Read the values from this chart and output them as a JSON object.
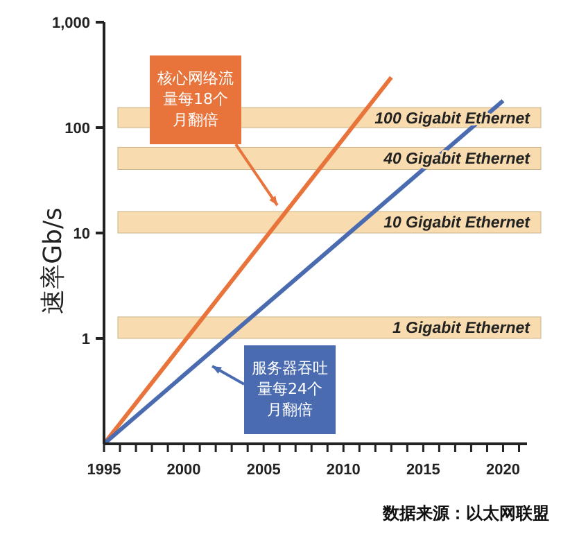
{
  "chart_data": {
    "type": "line",
    "ylabel": "速率Gb/s",
    "log": "y",
    "xlim": [
      1995,
      2021.5
    ],
    "ylim": [
      0.1,
      1000
    ],
    "xticks": [
      1995,
      {
        "value": 1996,
        "label": null
      },
      {
        "value": 1997,
        "label": null
      },
      {
        "value": 1998,
        "label": null
      },
      {
        "value": 1999,
        "label": null
      },
      2000,
      {
        "value": 2001,
        "label": null
      },
      {
        "value": 2002,
        "label": null
      },
      {
        "value": 2003,
        "label": null
      },
      {
        "value": 2004,
        "label": null
      },
      2005,
      {
        "value": 2006,
        "label": null
      },
      {
        "value": 2007,
        "label": null
      },
      {
        "value": 2008,
        "label": null
      },
      {
        "value": 2009,
        "label": null
      },
      2010,
      {
        "value": 2011,
        "label": null
      },
      {
        "value": 2012,
        "label": null
      },
      {
        "value": 2013,
        "label": null
      },
      {
        "value": 2014,
        "label": null
      },
      2015,
      {
        "value": 2016,
        "label": null
      },
      {
        "value": 2017,
        "label": null
      },
      {
        "value": 2018,
        "label": null
      },
      {
        "value": 2019,
        "label": null
      },
      2020,
      {
        "value": 2021,
        "label": null
      }
    ],
    "yticks": [
      1,
      10,
      100,
      {
        "value": 1000,
        "label": "1,000"
      }
    ],
    "series": [
      {
        "color": "#e8743b",
        "x": [
          1995,
          2013
        ],
        "values": [
          0.1,
          300
        ]
      },
      {
        "color": "#4a6bb0",
        "x": [
          1995,
          2020
        ],
        "values": [
          0.1,
          180
        ]
      }
    ],
    "bands": [
      {
        "axis": "y",
        "from": 1,
        "to": 1.6,
        "label": "1 Gigabit Ethernet",
        "color": "#f8dcb0"
      },
      {
        "axis": "y",
        "from": 10,
        "to": 16,
        "label": "10 Gigabit Ethernet",
        "color": "#f8dcb0"
      },
      {
        "axis": "y",
        "from": 40,
        "to": 65,
        "label": "40 Gigabit Ethernet",
        "color": "#f8dcb0"
      },
      {
        "axis": "y",
        "from": 100,
        "to": 155,
        "label": "100 Gigabit Ethernet",
        "color": "#f8dcb0"
      }
    ],
    "annotations": [
      "核心网络流量每18个月翻倍",
      "服务器吞吐量每24个月翻倍",
      "数据来源：以太网联盟"
    ],
    "grid": false,
    "marker": "none",
    "line_style": "solid"
  }
}
